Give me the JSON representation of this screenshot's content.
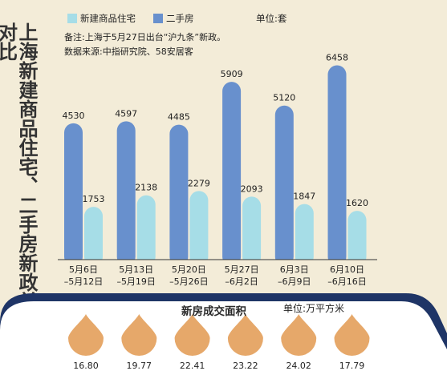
{
  "title": "上海新建商品住宅、二手房新政前后成交对比",
  "legend": [
    {
      "label": "新建商品住宅",
      "color": "#a6dde7"
    },
    {
      "label": "二手房",
      "color": "#6890cd"
    }
  ],
  "unit_label": "单位:套",
  "note": "备注:上海于5月27日出台“沪九条”新政。",
  "source": "数据来源:中指研究院、58安居客",
  "chart_data": [
    {
      "type": "bar",
      "categories": [
        [
          "5月6日",
          "–5月12日"
        ],
        [
          "5月13日",
          "–5月19日"
        ],
        [
          "5月20日",
          "–5月26日"
        ],
        [
          "5月27日",
          "–6月2日"
        ],
        [
          "6月3日",
          "–6月9日"
        ],
        [
          "6月10日",
          "–6月16日"
        ]
      ],
      "series": [
        {
          "name": "二手房",
          "values": [
            4530,
            4597,
            4485,
            5909,
            5120,
            6458
          ]
        },
        {
          "name": "新建商品住宅",
          "values": [
            1753,
            2138,
            2279,
            2093,
            1847,
            1620
          ]
        }
      ],
      "title": "上海新建商品住宅、二手房新政前后成交对比",
      "unit": "单位:套",
      "ylim": [
        0,
        7000
      ]
    },
    {
      "type": "bar",
      "title": "新房成交面积",
      "unit": "单位:万平方米",
      "values": [
        16.8,
        19.77,
        22.41,
        23.22,
        24.02,
        17.79
      ],
      "value_labels": [
        "16.80",
        "19.77",
        "22.41",
        "23.22",
        "24.02",
        "17.79"
      ]
    }
  ],
  "colors": {
    "background": "#f3ecd8",
    "band": "#1f3566",
    "band_inner": "#ffffff",
    "drop": "#e6a86a",
    "axis": "#333333"
  }
}
